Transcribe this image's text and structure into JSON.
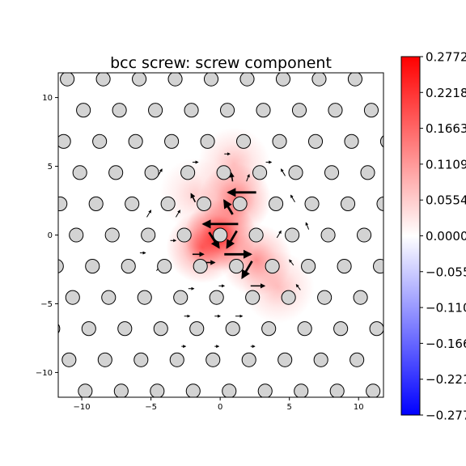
{
  "chart_data": {
    "type": "scatter",
    "title": "bcc screw: screw component",
    "xlabel": "",
    "ylabel": "",
    "xlim": [
      -11.7,
      11.8
    ],
    "ylim": [
      -11.8,
      11.8
    ],
    "xticks": [
      -10,
      -5,
      0,
      5,
      10
    ],
    "xtick_labels": [
      "−10",
      "−5",
      "0",
      "5",
      "10"
    ],
    "yticks": [
      -10,
      -5,
      0,
      5,
      10
    ],
    "ytick_labels": [
      "−10",
      "−5",
      "0",
      "5",
      "10"
    ],
    "lattice": {
      "row_spacing": 2.27,
      "col_spacing": 2.6,
      "row_shift_per_row": 1.3,
      "row_drift_per_row": 0.13,
      "atom_radius": 0.5
    },
    "colorbar": {
      "colormap": "bwr",
      "min": -0.2772,
      "max": 0.2772,
      "ticks": [
        0.2772,
        0.2218,
        0.1663,
        0.1109,
        0.0554,
        0.0,
        -0.0554,
        -0.1109,
        -0.1663,
        -0.2218,
        -0.2772
      ],
      "tick_labels": [
        "0.2772",
        "0.2218",
        "0.1663",
        "0.1109",
        "0.0554",
        "0.0000",
        "−0.0554",
        "−0.1109",
        "−0.1663",
        "−0.2218",
        "−0.2772"
      ]
    },
    "field": [
      {
        "x": 0.0,
        "y": 0.0,
        "value": 0.24
      },
      {
        "x": 1.1,
        "y": 2.6,
        "value": 0.15
      },
      {
        "x": -1.3,
        "y": -0.9,
        "value": 0.15
      },
      {
        "x": 2.6,
        "y": -1.8,
        "value": 0.12
      },
      {
        "x": 1.0,
        "y": 5.2,
        "value": 0.07
      },
      {
        "x": 4.2,
        "y": -3.8,
        "value": 0.07
      },
      {
        "x": -1.8,
        "y": 3.0,
        "value": 0.05
      }
    ],
    "arrows": [
      {
        "x1": 1.3,
        "y1": 0.8,
        "x2": -1.2,
        "y2": 0.8
      },
      {
        "x1": 2.6,
        "y1": 3.1,
        "x2": 0.6,
        "y2": 3.1
      },
      {
        "x1": -0.8,
        "y1": 0.2,
        "x2": -0.1,
        "y2": -0.9
      },
      {
        "x1": 1.2,
        "y1": 0.3,
        "x2": 0.5,
        "y2": -0.9
      },
      {
        "x1": 0.3,
        "y1": -1.4,
        "x2": 2.2,
        "y2": -1.4
      },
      {
        "x1": 2.3,
        "y1": -1.9,
        "x2": 1.6,
        "y2": -3.1
      },
      {
        "x1": 0.9,
        "y1": 1.5,
        "x2": 0.3,
        "y2": 2.5
      },
      {
        "x1": -1.3,
        "y1": -2.0,
        "x2": -0.4,
        "y2": -2.0
      },
      {
        "x1": 2.2,
        "y1": -3.7,
        "x2": 3.2,
        "y2": -3.7
      },
      {
        "x1": -2.0,
        "y1": -1.4,
        "x2": -1.2,
        "y2": -1.4
      },
      {
        "x1": 0.9,
        "y1": 3.9,
        "x2": 0.8,
        "y2": 4.5
      },
      {
        "x1": 1.9,
        "y1": 3.9,
        "x2": 2.1,
        "y2": 4.4
      },
      {
        "x1": -1.8,
        "y1": 2.4,
        "x2": -2.1,
        "y2": 3.0
      },
      {
        "x1": -4.5,
        "y1": 4.3,
        "x2": -4.2,
        "y2": 4.8
      },
      {
        "x1": -2.0,
        "y1": 5.3,
        "x2": -1.6,
        "y2": 5.3
      },
      {
        "x1": 0.3,
        "y1": 5.9,
        "x2": 0.7,
        "y2": 5.9
      },
      {
        "x1": 3.3,
        "y1": 5.3,
        "x2": 3.7,
        "y2": 5.3
      },
      {
        "x1": 4.7,
        "y1": 4.3,
        "x2": 4.4,
        "y2": 4.8
      },
      {
        "x1": 5.4,
        "y1": 2.4,
        "x2": 5.1,
        "y2": 2.9
      },
      {
        "x1": 6.4,
        "y1": 0.4,
        "x2": 6.2,
        "y2": 0.9
      },
      {
        "x1": -3.2,
        "y1": 1.3,
        "x2": -2.9,
        "y2": 1.8
      },
      {
        "x1": -5.3,
        "y1": 1.3,
        "x2": -5.0,
        "y2": 1.8
      },
      {
        "x1": -3.6,
        "y1": -0.4,
        "x2": -3.2,
        "y2": -0.4
      },
      {
        "x1": -4.6,
        "y1": -2.6,
        "x2": -4.3,
        "y2": -2.2
      },
      {
        "x1": -5.8,
        "y1": -1.3,
        "x2": -5.4,
        "y2": -1.3
      },
      {
        "x1": 4.1,
        "y1": -0.2,
        "x2": 4.4,
        "y2": 0.3
      },
      {
        "x1": 5.3,
        "y1": -2.2,
        "x2": 5.0,
        "y2": -1.8
      },
      {
        "x1": 5.8,
        "y1": -4.0,
        "x2": 5.5,
        "y2": -3.6
      },
      {
        "x1": -2.6,
        "y1": -5.9,
        "x2": -2.2,
        "y2": -5.9
      },
      {
        "x1": -0.4,
        "y1": -5.9,
        "x2": 0.0,
        "y2": -5.9
      },
      {
        "x1": 1.1,
        "y1": -5.9,
        "x2": 1.6,
        "y2": -5.9
      },
      {
        "x1": -0.1,
        "y1": -3.7,
        "x2": 0.3,
        "y2": -3.7
      },
      {
        "x1": -2.3,
        "y1": -3.9,
        "x2": -1.9,
        "y2": -3.9
      },
      {
        "x1": 3.7,
        "y1": -2.7,
        "x2": 4.0,
        "y2": -2.3
      },
      {
        "x1": -0.4,
        "y1": -8.1,
        "x2": -0.1,
        "y2": -8.1
      },
      {
        "x1": 2.2,
        "y1": -8.1,
        "x2": 2.5,
        "y2": -8.1
      },
      {
        "x1": -2.8,
        "y1": -8.1,
        "x2": -2.5,
        "y2": -8.1
      }
    ]
  }
}
